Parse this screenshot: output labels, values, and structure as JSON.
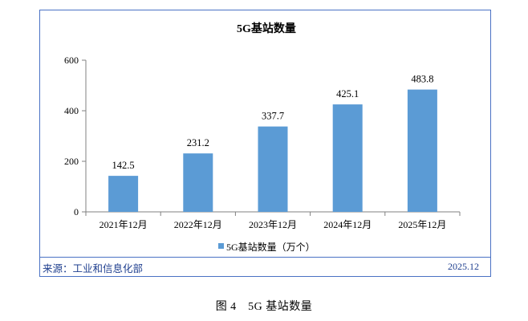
{
  "chart_data": {
    "type": "bar",
    "title": "5G基站数量",
    "categories": [
      "2021年12月",
      "2022年12月",
      "2023年12月",
      "2024年12月",
      "2025年12月"
    ],
    "series": [
      {
        "name": "5G基站数量（万个）",
        "values": [
          142.5,
          231.2,
          337.7,
          425.1,
          483.8
        ],
        "color": "#5b9bd5"
      }
    ],
    "value_labels": [
      "142.5",
      "231.2",
      "337.7",
      "425.1",
      "483.8"
    ],
    "yticks": [
      0,
      200,
      400,
      600
    ],
    "ylim": [
      0,
      600
    ],
    "grid": false,
    "legend_position": "bottom"
  },
  "footer": {
    "source": "来源：工业和信息化部",
    "date": "2025.12"
  },
  "caption": "图 4　5G 基站数量"
}
